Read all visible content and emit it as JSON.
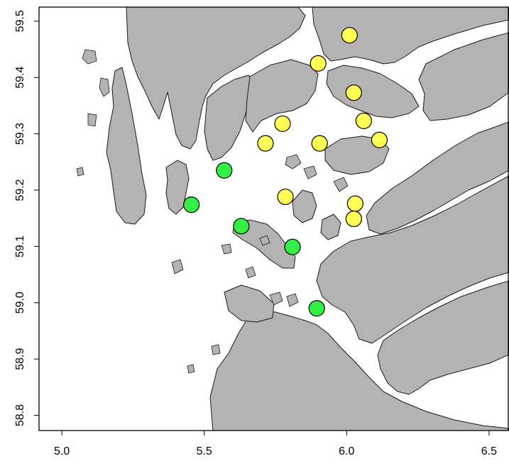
{
  "chart_data": {
    "type": "scatter",
    "title": "",
    "xlabel": "",
    "ylabel": "",
    "xlim": [
      4.92,
      6.57
    ],
    "ylim": [
      58.773,
      59.525
    ],
    "xticks": [
      "5.0",
      "5.5",
      "6.0",
      "6.5"
    ],
    "yticks": [
      "58.8",
      "58.9",
      "59.0",
      "59.1",
      "59.2",
      "59.3",
      "59.4",
      "59.5"
    ],
    "background": "map of coastline and fjords (land shaded grey, sea white)",
    "colors": {
      "land": "#b3b3b3",
      "sea": "#ffffff",
      "coast": "#1a1a1a"
    },
    "series": [
      {
        "color": "#ffff55",
        "points": [
          {
            "x": 6.01,
            "y": 59.475
          },
          {
            "x": 5.9,
            "y": 59.425
          },
          {
            "x": 6.025,
            "y": 59.373
          },
          {
            "x": 6.06,
            "y": 59.323
          },
          {
            "x": 5.775,
            "y": 59.318
          },
          {
            "x": 5.715,
            "y": 59.283
          },
          {
            "x": 5.905,
            "y": 59.283
          },
          {
            "x": 6.115,
            "y": 59.289
          },
          {
            "x": 5.785,
            "y": 59.188
          },
          {
            "x": 6.03,
            "y": 59.176
          },
          {
            "x": 6.025,
            "y": 59.149
          }
        ]
      },
      {
        "color": "#33ee44",
        "points": [
          {
            "x": 5.57,
            "y": 59.235
          },
          {
            "x": 5.455,
            "y": 59.174
          },
          {
            "x": 5.63,
            "y": 59.136
          },
          {
            "x": 5.81,
            "y": 59.099
          },
          {
            "x": 5.895,
            "y": 58.99
          }
        ]
      }
    ]
  }
}
